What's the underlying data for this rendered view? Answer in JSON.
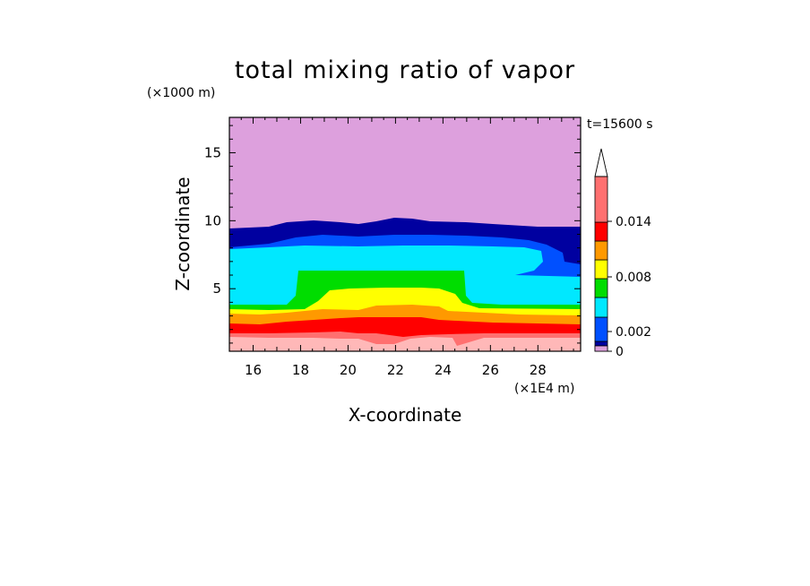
{
  "chart_data": {
    "type": "heatmap",
    "title": "total mixing ratio of vapor",
    "xlabel": "X-coordinate",
    "ylabel": "Z-coordinate",
    "x_unit": "(×1E4 m)",
    "y_unit": "(×1000 m)",
    "time_label": "t=15600 s",
    "xlim": [
      15,
      29.8
    ],
    "ylim": [
      0.4,
      17.6
    ],
    "x_ticks": [
      16,
      18,
      20,
      22,
      24,
      26,
      28
    ],
    "y_ticks": [
      5,
      10,
      15
    ],
    "colorbar": {
      "levels": [
        0,
        0.001,
        0.002,
        0.004,
        0.006,
        0.008,
        0.01,
        0.012,
        0.014,
        0.016
      ],
      "tick_values": [
        0,
        0.002,
        0.008,
        0.014
      ],
      "tick_labels": [
        "0",
        "0.002",
        "0.008",
        "0.014"
      ],
      "colors": [
        "#dda0dd",
        "#0000a0",
        "#0050ff",
        "#00e8ff",
        "#00dd00",
        "#ffff00",
        "#ff9900",
        "#ff0000",
        "#ff7070",
        "#ffb8b8"
      ],
      "extend": "max"
    },
    "bands": [
      {
        "z": [
          0.4,
          1.2
        ],
        "value": ">0.014"
      },
      {
        "z": [
          1.2,
          2.2
        ],
        "value": "0.012-0.014"
      },
      {
        "z": [
          2.2,
          2.9
        ],
        "value": "0.010-0.012"
      },
      {
        "z": [
          2.9,
          3.5
        ],
        "value": "0.008-0.010"
      },
      {
        "z": [
          3.5,
          4.0
        ],
        "value": "0.006-0.008"
      },
      {
        "z": [
          4.0,
          4.5
        ],
        "value": "0.004-0.006"
      },
      {
        "z": [
          4.5,
          8.0
        ],
        "value": "0.002-0.004"
      },
      {
        "z": [
          8.0,
          8.6
        ],
        "value": "0.001-0.002"
      },
      {
        "z": [
          8.6,
          9.6
        ],
        "value": "0-0.001"
      },
      {
        "z": [
          9.6,
          17.6
        ],
        "value": "<0"
      }
    ]
  }
}
